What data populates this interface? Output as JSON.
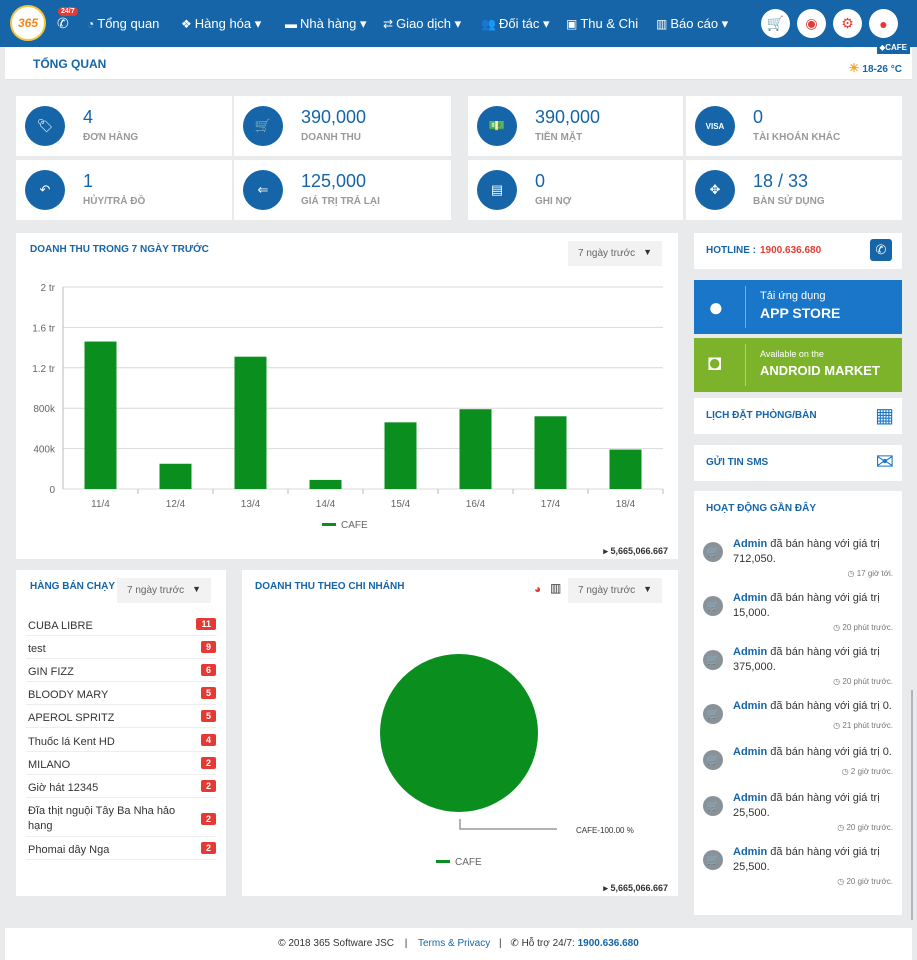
{
  "nav": {
    "logo": "365",
    "badge": "24/7",
    "items": [
      "Tổng quan",
      "Hàng hóa",
      "Nhà hàng",
      "Giao dịch",
      "Đối tác",
      "Thu & Chi",
      "Báo cáo"
    ]
  },
  "page": {
    "title": "TỔNG QUAN",
    "branch": "CAFE",
    "weather": "18-26 °C"
  },
  "stats": [
    {
      "value": "4",
      "label": "ĐƠN HÀNG"
    },
    {
      "value": "390,000",
      "label": "DOANH THU"
    },
    {
      "value": "390,000",
      "label": "TIỀN MẶT"
    },
    {
      "value": "0",
      "label": "TÀI KHOẢN KHÁC"
    },
    {
      "value": "1",
      "label": "HỦY/TRẢ ĐỒ"
    },
    {
      "value": "125,000",
      "label": "GIÁ TRỊ TRẢ LẠI"
    },
    {
      "value": "0",
      "label": "GHI NỢ"
    },
    {
      "value": "18 / 33",
      "label": "BÀN SỬ DỤNG"
    }
  ],
  "revenue_chart": {
    "title": "DOANH THU TRONG 7 NGÀY TRƯỚC",
    "period": "7 ngày trước",
    "total": "5,665,066.667"
  },
  "chart_data": [
    {
      "type": "bar",
      "title": "DOANH THU TRONG 7 NGÀY TRƯỚC",
      "categories": [
        "11/4",
        "12/4",
        "13/4",
        "14/4",
        "15/4",
        "16/4",
        "17/4",
        "18/4"
      ],
      "series": [
        {
          "name": "CAFE",
          "values": [
            1460000,
            250000,
            1310000,
            90000,
            660000,
            790000,
            720000,
            390000
          ],
          "color": "#0a8f1f"
        }
      ],
      "yticks": [
        "0",
        "400k",
        "800k",
        "1.2 tr",
        "1.6 tr",
        "2 tr"
      ],
      "ylim": [
        0,
        2000000
      ],
      "grid": true,
      "legend": "bottom"
    },
    {
      "type": "pie",
      "title": "DOANH THU THEO CHI NHÁNH",
      "categories": [
        "CAFE"
      ],
      "values": [
        100
      ],
      "labels": [
        "CAFE-100.00 %"
      ],
      "color": "#0a8f1f",
      "legend": "bottom"
    }
  ],
  "bestsellers": {
    "title": "HÀNG BÁN CHẠY",
    "period": "7 ngày trước",
    "items": [
      {
        "name": "CUBA LIBRE",
        "qty": "11"
      },
      {
        "name": "test",
        "qty": "9"
      },
      {
        "name": "GIN FIZZ",
        "qty": "6"
      },
      {
        "name": "BLOODY MARY",
        "qty": "5"
      },
      {
        "name": "APEROL SPRITZ",
        "qty": "5"
      },
      {
        "name": "Thuốc lá Kent HD",
        "qty": "4"
      },
      {
        "name": "MILANO",
        "qty": "2"
      },
      {
        "name": "Giờ hát 12345",
        "qty": "2"
      },
      {
        "name": "Đĩa thịt nguội Tây Ba Nha hảo hạng",
        "qty": "2"
      },
      {
        "name": "Phomai dây Nga",
        "qty": "2"
      }
    ]
  },
  "branch_chart": {
    "title": "DOANH THU THEO CHI NHÁNH",
    "period": "7 ngày trước",
    "total": "5,665,066.667"
  },
  "side": {
    "hotline_label": "HOTLINE :",
    "hotline": "1900.636.680",
    "appstore_small": "Tải ứng dụng",
    "appstore_big": "APP STORE",
    "android_small": "Available on the",
    "android_big": "ANDROID MARKET",
    "booking": "LỊCH ĐẶT PHÒNG/BÀN",
    "sms": "GỬI TIN SMS",
    "activity_title": "HOẠT ĐỘNG GẦN ĐÂY"
  },
  "activities": [
    {
      "user": "Admin",
      "text": "đã bán hàng với giá trị",
      "value": "712,050.",
      "time": "17 giờ tới."
    },
    {
      "user": "Admin",
      "text": "đã bán hàng với giá trị",
      "value": "15,000.",
      "time": "20 phút trước."
    },
    {
      "user": "Admin",
      "text": "đã bán hàng với giá trị",
      "value": "375,000.",
      "time": "20 phút trước."
    },
    {
      "user": "Admin",
      "text": "đã bán hàng với giá trị 0.",
      "value": "",
      "time": "21 phút trước."
    },
    {
      "user": "Admin",
      "text": "đã bán hàng với giá trị 0.",
      "value": "",
      "time": "2 giờ trước."
    },
    {
      "user": "Admin",
      "text": "đã bán hàng với giá trị",
      "value": "25,500.",
      "time": "20 giờ trước."
    },
    {
      "user": "Admin",
      "text": "đã bán hàng với giá trị",
      "value": "25,500.",
      "time": "20 giờ trước."
    }
  ],
  "footer": {
    "copyright": "© 2018 365 Software JSC",
    "sep": "|",
    "terms": "Terms & Privacy",
    "support_label": "Hỗ trợ 24/7:",
    "support_phone": "1900.636.680"
  }
}
